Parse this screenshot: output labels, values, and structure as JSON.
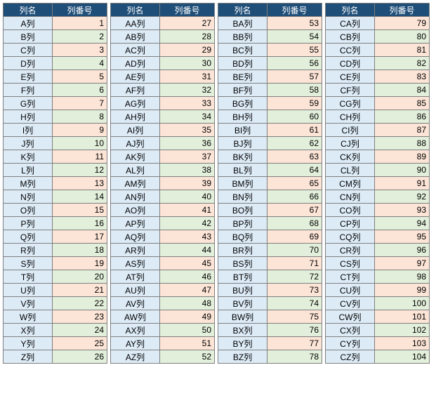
{
  "headers": {
    "name": "列名",
    "num": "列番号"
  },
  "columns": {
    "name_width": 70,
    "num_width": 78,
    "header_bg": "#1f4e78",
    "header_fg": "#ffffff",
    "name_bg": "#ddebf7",
    "row_colors": [
      "#fce4d6",
      "#e2efda"
    ],
    "border_color": "#7f7f7f"
  },
  "blocks": [
    [
      {
        "name": "A列",
        "num": 1
      },
      {
        "name": "B列",
        "num": 2
      },
      {
        "name": "C列",
        "num": 3
      },
      {
        "name": "D列",
        "num": 4
      },
      {
        "name": "E列",
        "num": 5
      },
      {
        "name": "F列",
        "num": 6
      },
      {
        "name": "G列",
        "num": 7
      },
      {
        "name": "H列",
        "num": 8
      },
      {
        "name": "I列",
        "num": 9
      },
      {
        "name": "J列",
        "num": 10
      },
      {
        "name": "K列",
        "num": 11
      },
      {
        "name": "L列",
        "num": 12
      },
      {
        "name": "M列",
        "num": 13
      },
      {
        "name": "N列",
        "num": 14
      },
      {
        "name": "O列",
        "num": 15
      },
      {
        "name": "P列",
        "num": 16
      },
      {
        "name": "Q列",
        "num": 17
      },
      {
        "name": "R列",
        "num": 18
      },
      {
        "name": "S列",
        "num": 19
      },
      {
        "name": "T列",
        "num": 20
      },
      {
        "name": "U列",
        "num": 21
      },
      {
        "name": "V列",
        "num": 22
      },
      {
        "name": "W列",
        "num": 23
      },
      {
        "name": "X列",
        "num": 24
      },
      {
        "name": "Y列",
        "num": 25
      },
      {
        "name": "Z列",
        "num": 26
      }
    ],
    [
      {
        "name": "AA列",
        "num": 27
      },
      {
        "name": "AB列",
        "num": 28
      },
      {
        "name": "AC列",
        "num": 29
      },
      {
        "name": "AD列",
        "num": 30
      },
      {
        "name": "AE列",
        "num": 31
      },
      {
        "name": "AF列",
        "num": 32
      },
      {
        "name": "AG列",
        "num": 33
      },
      {
        "name": "AH列",
        "num": 34
      },
      {
        "name": "AI列",
        "num": 35
      },
      {
        "name": "AJ列",
        "num": 36
      },
      {
        "name": "AK列",
        "num": 37
      },
      {
        "name": "AL列",
        "num": 38
      },
      {
        "name": "AM列",
        "num": 39
      },
      {
        "name": "AN列",
        "num": 40
      },
      {
        "name": "AO列",
        "num": 41
      },
      {
        "name": "AP列",
        "num": 42
      },
      {
        "name": "AQ列",
        "num": 43
      },
      {
        "name": "AR列",
        "num": 44
      },
      {
        "name": "AS列",
        "num": 45
      },
      {
        "name": "AT列",
        "num": 46
      },
      {
        "name": "AU列",
        "num": 47
      },
      {
        "name": "AV列",
        "num": 48
      },
      {
        "name": "AW列",
        "num": 49
      },
      {
        "name": "AX列",
        "num": 50
      },
      {
        "name": "AY列",
        "num": 51
      },
      {
        "name": "AZ列",
        "num": 52
      }
    ],
    [
      {
        "name": "BA列",
        "num": 53
      },
      {
        "name": "BB列",
        "num": 54
      },
      {
        "name": "BC列",
        "num": 55
      },
      {
        "name": "BD列",
        "num": 56
      },
      {
        "name": "BE列",
        "num": 57
      },
      {
        "name": "BF列",
        "num": 58
      },
      {
        "name": "BG列",
        "num": 59
      },
      {
        "name": "BH列",
        "num": 60
      },
      {
        "name": "BI列",
        "num": 61
      },
      {
        "name": "BJ列",
        "num": 62
      },
      {
        "name": "BK列",
        "num": 63
      },
      {
        "name": "BL列",
        "num": 64
      },
      {
        "name": "BM列",
        "num": 65
      },
      {
        "name": "BN列",
        "num": 66
      },
      {
        "name": "BO列",
        "num": 67
      },
      {
        "name": "BP列",
        "num": 68
      },
      {
        "name": "BQ列",
        "num": 69
      },
      {
        "name": "BR列",
        "num": 70
      },
      {
        "name": "BS列",
        "num": 71
      },
      {
        "name": "BT列",
        "num": 72
      },
      {
        "name": "BU列",
        "num": 73
      },
      {
        "name": "BV列",
        "num": 74
      },
      {
        "name": "BW列",
        "num": 75
      },
      {
        "name": "BX列",
        "num": 76
      },
      {
        "name": "BY列",
        "num": 77
      },
      {
        "name": "BZ列",
        "num": 78
      }
    ],
    [
      {
        "name": "CA列",
        "num": 79
      },
      {
        "name": "CB列",
        "num": 80
      },
      {
        "name": "CC列",
        "num": 81
      },
      {
        "name": "CD列",
        "num": 82
      },
      {
        "name": "CE列",
        "num": 83
      },
      {
        "name": "CF列",
        "num": 84
      },
      {
        "name": "CG列",
        "num": 85
      },
      {
        "name": "CH列",
        "num": 86
      },
      {
        "name": "CI列",
        "num": 87
      },
      {
        "name": "CJ列",
        "num": 88
      },
      {
        "name": "CK列",
        "num": 89
      },
      {
        "name": "CL列",
        "num": 90
      },
      {
        "name": "CM列",
        "num": 91
      },
      {
        "name": "CN列",
        "num": 92
      },
      {
        "name": "CO列",
        "num": 93
      },
      {
        "name": "CP列",
        "num": 94
      },
      {
        "name": "CQ列",
        "num": 95
      },
      {
        "name": "CR列",
        "num": 96
      },
      {
        "name": "CS列",
        "num": 97
      },
      {
        "name": "CT列",
        "num": 98
      },
      {
        "name": "CU列",
        "num": 99
      },
      {
        "name": "CV列",
        "num": 100
      },
      {
        "name": "CW列",
        "num": 101
      },
      {
        "name": "CX列",
        "num": 102
      },
      {
        "name": "CY列",
        "num": 103
      },
      {
        "name": "CZ列",
        "num": 104
      }
    ]
  ]
}
